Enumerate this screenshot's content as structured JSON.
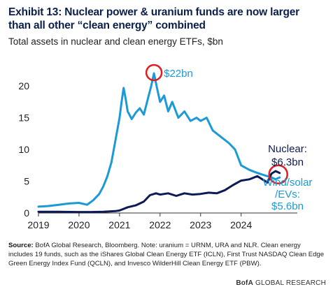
{
  "header": {
    "title": "Exhibit 13: Nuclear power & uranium funds are now larger than all other “clean energy” combined",
    "subtitle": "Total assets in nuclear and clean energy ETFs, $bn"
  },
  "footer": {
    "source_label": "Source:",
    "source_text": " BofA Global Research, Bloomberg. Note: uranium = URNM, URA and NLR. Clean energy includes 19 funds, such as the iShares Global Clean Energy ETF (ICLN), First Trust NASDAQ Clean Edge Green Energy Index Fund (QCLN), and Invesco WilderHill Clean Energy ETF (PBW).",
    "brand_bold": "BofA",
    "brand_rest": " GLOBAL RESEARCH"
  },
  "colors": {
    "clean": "#1a9ad6",
    "nuclear": "#0e1a55",
    "highlight": "#e01b22",
    "axis": "#333333"
  },
  "chart_data": {
    "type": "line",
    "title": "",
    "xlabel": "",
    "ylabel": "",
    "xlim": [
      2019.0,
      2025.3
    ],
    "ylim": [
      0,
      22
    ],
    "x_ticks": [
      2019,
      2020,
      2021,
      2022,
      2023,
      2024
    ],
    "x_tick_labels": [
      "2019",
      "2020",
      "2021",
      "2022",
      "2023",
      "2024"
    ],
    "y_ticks": [
      0,
      5,
      10,
      15,
      20
    ],
    "y_tick_labels": [
      "0",
      "5",
      "10",
      "15",
      "20"
    ],
    "grid": false,
    "series": [
      {
        "name": "Wind/solar/EVs",
        "color": "#1a9ad6",
        "x": [
          2019.0,
          2019.25,
          2019.5,
          2019.75,
          2020.0,
          2020.2,
          2020.35,
          2020.5,
          2020.6,
          2020.7,
          2020.8,
          2020.9,
          2021.0,
          2021.05,
          2021.1,
          2021.15,
          2021.2,
          2021.3,
          2021.4,
          2021.5,
          2021.6,
          2021.7,
          2021.78,
          2021.85,
          2021.92,
          2022.0,
          2022.1,
          2022.2,
          2022.3,
          2022.45,
          2022.6,
          2022.75,
          2022.9,
          2023.0,
          2023.15,
          2023.3,
          2023.5,
          2023.7,
          2023.85,
          2024.0,
          2024.2,
          2024.4,
          2024.6,
          2024.75,
          2024.85,
          2024.95
        ],
        "y": [
          1.0,
          1.1,
          1.3,
          1.5,
          1.6,
          1.3,
          2.0,
          3.0,
          4.2,
          5.8,
          8.0,
          11.5,
          15.0,
          17.5,
          19.7,
          18.0,
          16.0,
          14.8,
          15.8,
          16.5,
          15.5,
          18.0,
          20.0,
          22.0,
          19.8,
          17.5,
          18.5,
          16.0,
          17.5,
          15.0,
          16.0,
          14.5,
          15.0,
          14.5,
          15.0,
          13.0,
          12.0,
          11.0,
          10.0,
          7.5,
          6.8,
          6.3,
          5.9,
          5.6,
          5.3,
          5.6
        ]
      },
      {
        "name": "Nuclear",
        "color": "#0e1a55",
        "x": [
          2019.0,
          2019.5,
          2020.0,
          2020.3,
          2020.6,
          2020.9,
          2021.0,
          2021.2,
          2021.4,
          2021.6,
          2021.75,
          2021.9,
          2022.0,
          2022.2,
          2022.4,
          2022.6,
          2022.8,
          2023.0,
          2023.2,
          2023.4,
          2023.6,
          2023.8,
          2024.0,
          2024.2,
          2024.4,
          2024.55,
          2024.65,
          2024.75,
          2024.85,
          2024.95
        ],
        "y": [
          0.2,
          0.2,
          0.15,
          0.15,
          0.2,
          0.3,
          0.4,
          0.9,
          1.2,
          1.8,
          2.8,
          3.1,
          2.9,
          3.1,
          2.7,
          3.1,
          2.9,
          3.0,
          3.2,
          3.1,
          3.6,
          4.4,
          5.1,
          5.3,
          5.8,
          5.2,
          4.8,
          6.2,
          6.6,
          6.3
        ]
      }
    ],
    "annotations": [
      {
        "id": "peak",
        "text": "$22bn",
        "x": 2021.85,
        "y": 22.0
      },
      {
        "id": "nuclear",
        "lines": [
          "Nuclear:",
          "$6.3bn"
        ],
        "x": 2024.95,
        "y": 6.3
      },
      {
        "id": "clean",
        "lines": [
          "Wind/solar",
          "/EVs:",
          "$5.6bn"
        ],
        "x": 2024.95,
        "y": 5.6
      }
    ]
  }
}
